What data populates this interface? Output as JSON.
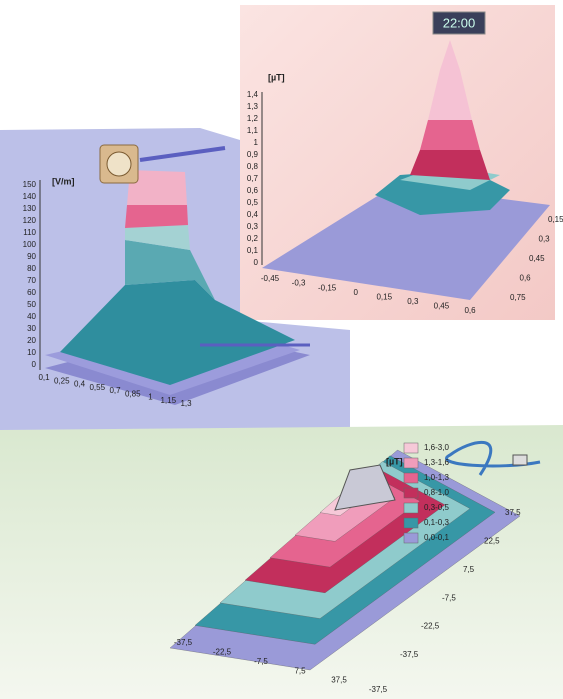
{
  "panels": [
    {
      "unit": "[V/m]",
      "z_ticks": [
        "0",
        "10",
        "20",
        "30",
        "40",
        "50",
        "60",
        "70",
        "80",
        "90",
        "100",
        "110",
        "120",
        "130",
        "140",
        "150"
      ],
      "x_ticks": [
        "0,1",
        "0,25",
        "0,4",
        "0,55",
        "0,7",
        "0,85",
        "1",
        "1,15",
        "1,3"
      ]
    },
    {
      "unit": "[µT]",
      "clock": "22:00",
      "z_ticks": [
        "0",
        "0,1",
        "0,2",
        "0,3",
        "0,4",
        "0,5",
        "0,6",
        "0,7",
        "0,8",
        "0,9",
        "1",
        "1,1",
        "1,2",
        "1,3",
        "1,4"
      ],
      "x_ticks": [
        "-0,45",
        "-0,3",
        "-0,15",
        "0",
        "0,15",
        "0,3",
        "0,45",
        "0,6"
      ],
      "y_ticks": [
        "0,15",
        "0,3",
        "0,45",
        "0,6",
        "0,75"
      ]
    },
    {
      "unit": "[µT]",
      "legend": [
        {
          "label": "1,6-3,0",
          "color": "#f6c9d8"
        },
        {
          "label": "1,3-1,6",
          "color": "#f09dbb"
        },
        {
          "label": "1,0-1,3",
          "color": "#e5648f"
        },
        {
          "label": "0,8-1,0",
          "color": "#c22f5c"
        },
        {
          "label": "0,3-0,5",
          "color": "#8fcbcc"
        },
        {
          "label": "0,1-0,3",
          "color": "#3797a6"
        },
        {
          "label": "0,0-0,1",
          "color": "#9a9ad8"
        }
      ],
      "x_ticks": [
        "-37,5",
        "-22,5",
        "-7,5",
        "7,5",
        "37,5",
        "-37,5"
      ],
      "y_ticks": [
        "37,5",
        "22,5",
        "7,5",
        "-7,5",
        "-22,5",
        "-37,5"
      ]
    }
  ]
}
